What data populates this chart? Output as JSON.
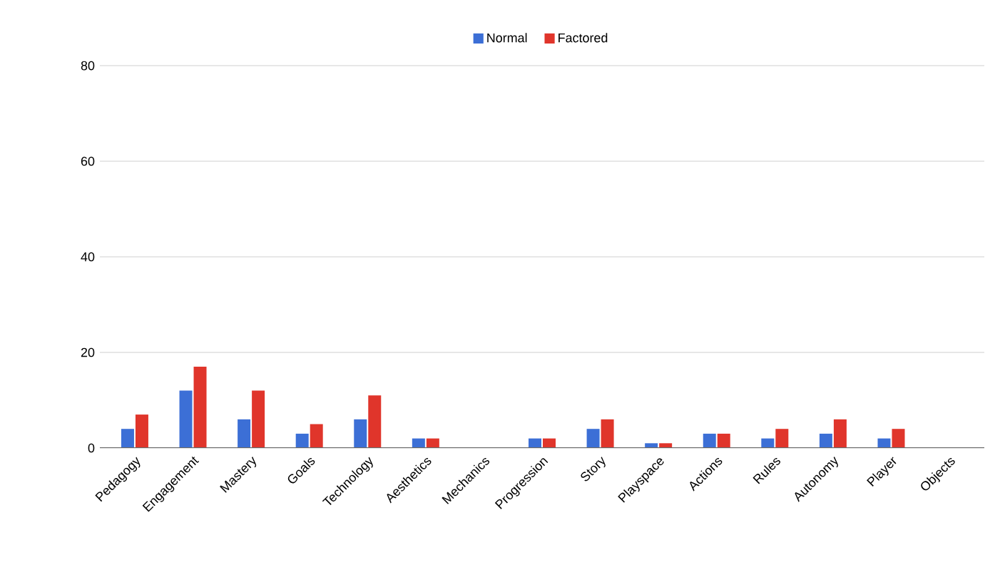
{
  "chart_data": {
    "type": "bar",
    "categories": [
      "Pedagogy",
      "Engagement",
      "Mastery",
      "Goals",
      "Technology",
      "Aesthetics",
      "Mechanics",
      "Progression",
      "Story",
      "Playspace",
      "Actions",
      "Rules",
      "Autonomy",
      "Player",
      "Objects"
    ],
    "series": [
      {
        "name": "Normal",
        "color": "#3c6fd6",
        "values": [
          4,
          12,
          6,
          3,
          6,
          2,
          0,
          2,
          4,
          1,
          3,
          2,
          3,
          2,
          0
        ]
      },
      {
        "name": "Factored",
        "color": "#e0352b",
        "values": [
          7,
          17,
          12,
          5,
          11,
          2,
          0,
          2,
          6,
          1,
          3,
          4,
          6,
          4,
          0
        ]
      }
    ],
    "ylim": [
      0,
      80
    ],
    "yticks": [
      0,
      20,
      40,
      60,
      80
    ],
    "grid": "y",
    "legend": "top"
  }
}
